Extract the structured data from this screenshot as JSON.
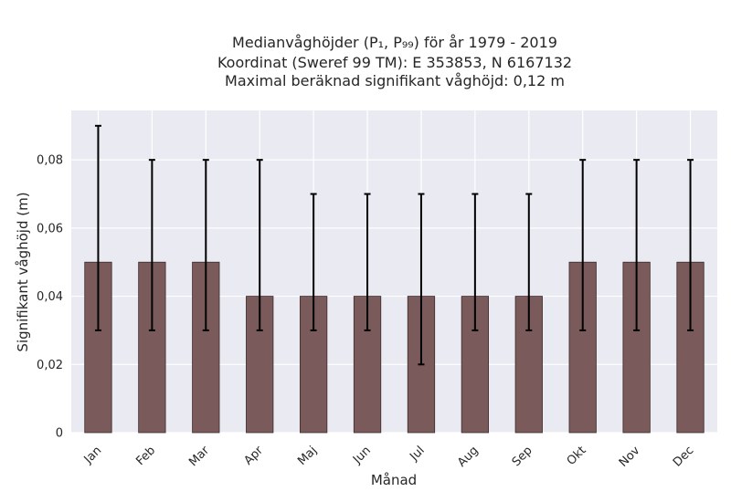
{
  "chart_data": {
    "type": "bar",
    "title_lines": [
      "Medianvåghöjder (P₁, P₉₉) för år 1979 - 2019",
      "Koordinat (Sweref 99 TM): E 353853, N 6167132",
      "Maximal beräknad signifikant våghöjd: 0,12 m"
    ],
    "xlabel": "Månad",
    "ylabel": "Signifikant våghöjd (m)",
    "categories": [
      "Jan",
      "Feb",
      "Mar",
      "Apr",
      "Maj",
      "Jun",
      "Jul",
      "Aug",
      "Sep",
      "Okt",
      "Nov",
      "Dec"
    ],
    "values": [
      0.05,
      0.05,
      0.05,
      0.04,
      0.04,
      0.04,
      0.04,
      0.04,
      0.04,
      0.05,
      0.05,
      0.05
    ],
    "error_low": [
      0.03,
      0.03,
      0.03,
      0.03,
      0.03,
      0.03,
      0.02,
      0.03,
      0.03,
      0.03,
      0.03,
      0.03
    ],
    "error_high": [
      0.09,
      0.08,
      0.08,
      0.08,
      0.07,
      0.07,
      0.07,
      0.07,
      0.07,
      0.08,
      0.08,
      0.08
    ],
    "ylim": [
      0,
      0.0945
    ],
    "yticks": [
      0,
      0.02,
      0.04,
      0.06,
      0.08
    ],
    "ytick_labels": [
      "0",
      "0,02",
      "0,04",
      "0,06",
      "0,08"
    ],
    "grid": true,
    "colors": {
      "bar": "#7a5a5a",
      "bar_edge": "#3b2b2b",
      "error": "#000000",
      "plot_background": "#eaeaf2",
      "grid": "#ffffff",
      "text": "#262626"
    }
  }
}
